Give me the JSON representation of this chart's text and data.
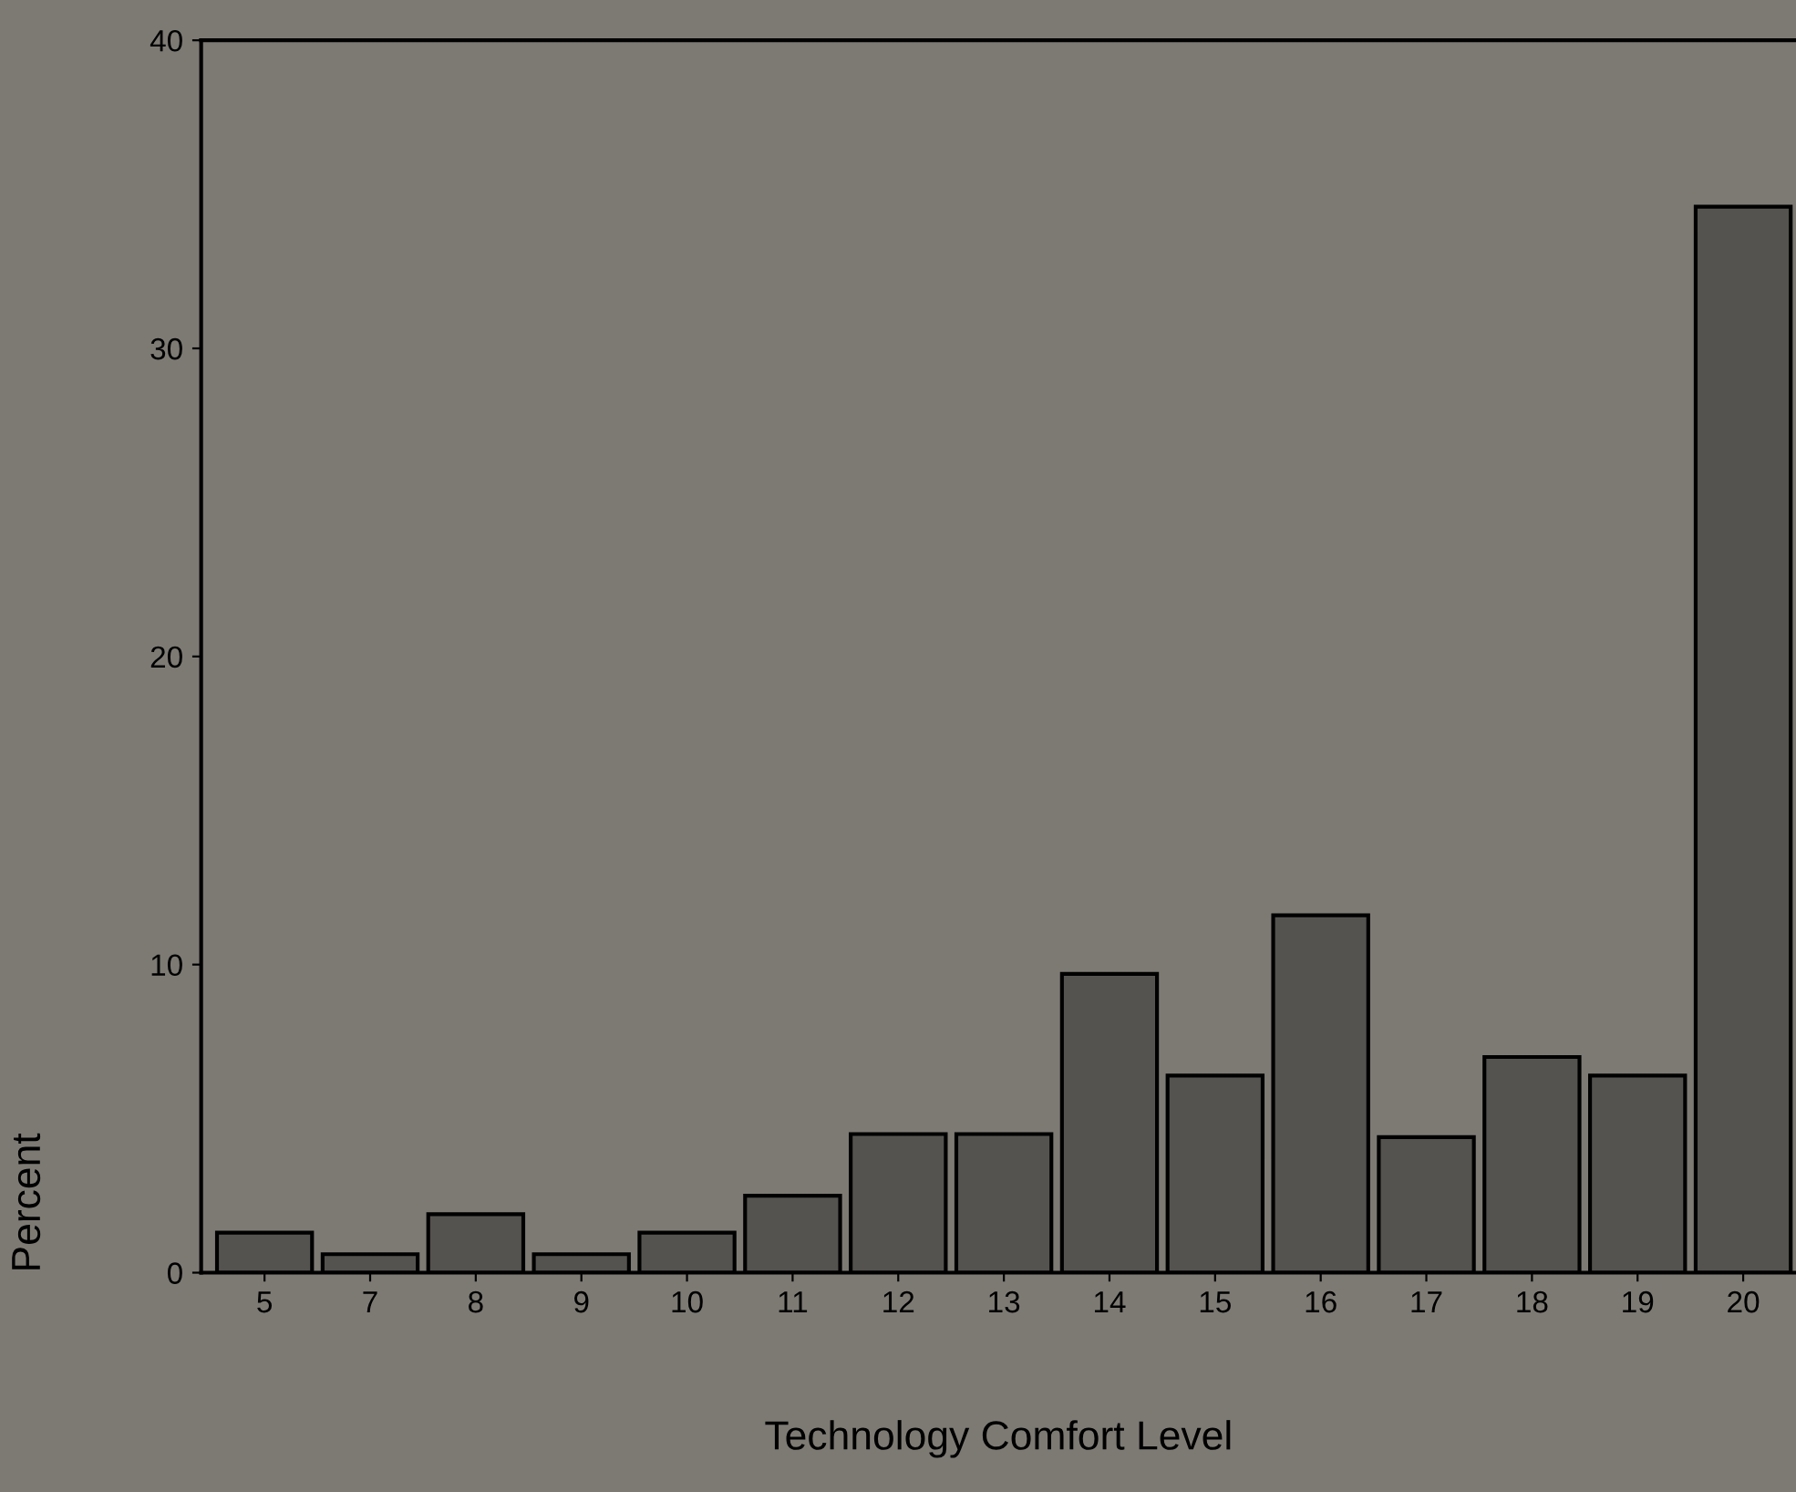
{
  "chart_data": {
    "type": "bar",
    "xlabel": "Technology Comfort Level",
    "ylabel": "Percent",
    "categories": [
      "5",
      "7",
      "8",
      "9",
      "10",
      "11",
      "12",
      "13",
      "14",
      "15",
      "16",
      "17",
      "18",
      "19",
      "20"
    ],
    "values": [
      1.3,
      0.6,
      1.9,
      0.6,
      1.3,
      2.5,
      4.5,
      4.5,
      9.7,
      6.4,
      11.6,
      4.4,
      7.0,
      6.4,
      34.6
    ],
    "color": "#55534f",
    "ylim": [
      0,
      40
    ],
    "yticks": [
      0,
      10,
      20,
      30,
      40
    ],
    "grid": false,
    "legend": false
  }
}
